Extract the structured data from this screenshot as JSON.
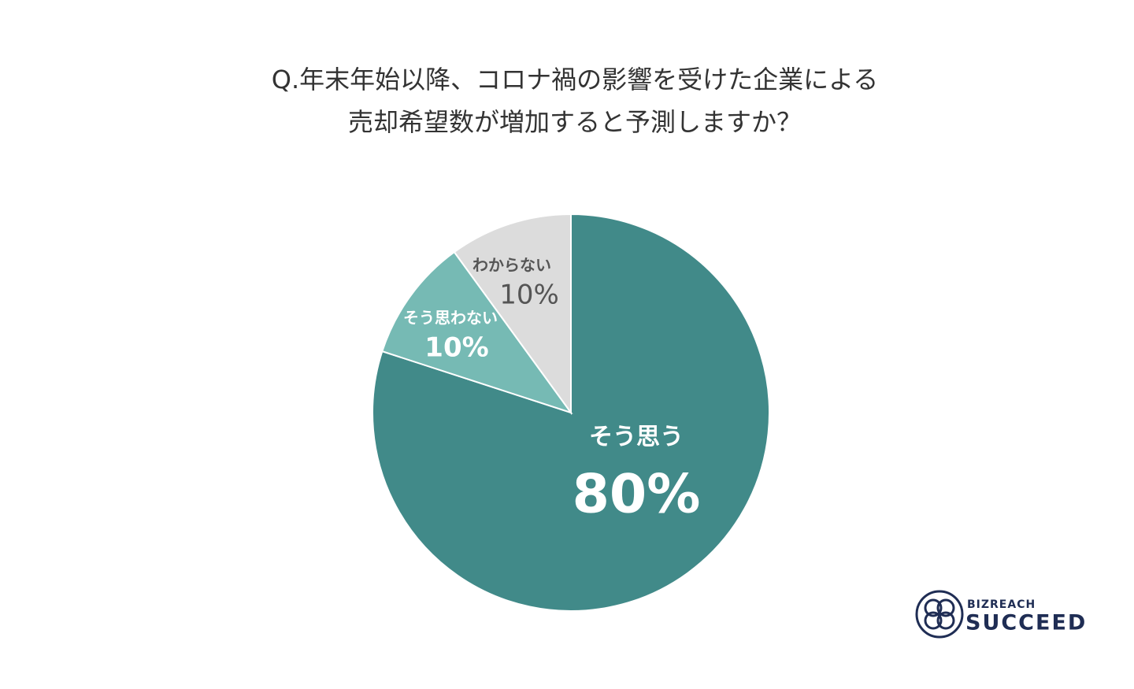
{
  "chart_data": {
    "type": "pie",
    "title": [
      "Q.年末年始以降、コロナ禍の影響を受けた企業による",
      "売却希望数が増加すると予測しますか？"
    ],
    "categories": [
      "そう思う",
      "そう思わない",
      "わからない"
    ],
    "values": [
      80,
      10,
      10
    ],
    "value_labels": [
      "80%",
      "10%",
      "10%"
    ],
    "colors": [
      "#418a89",
      "#76bab4",
      "#dcdcdc"
    ]
  },
  "logo": {
    "top": "BIZREACH",
    "bottom": "SUCCEED"
  }
}
